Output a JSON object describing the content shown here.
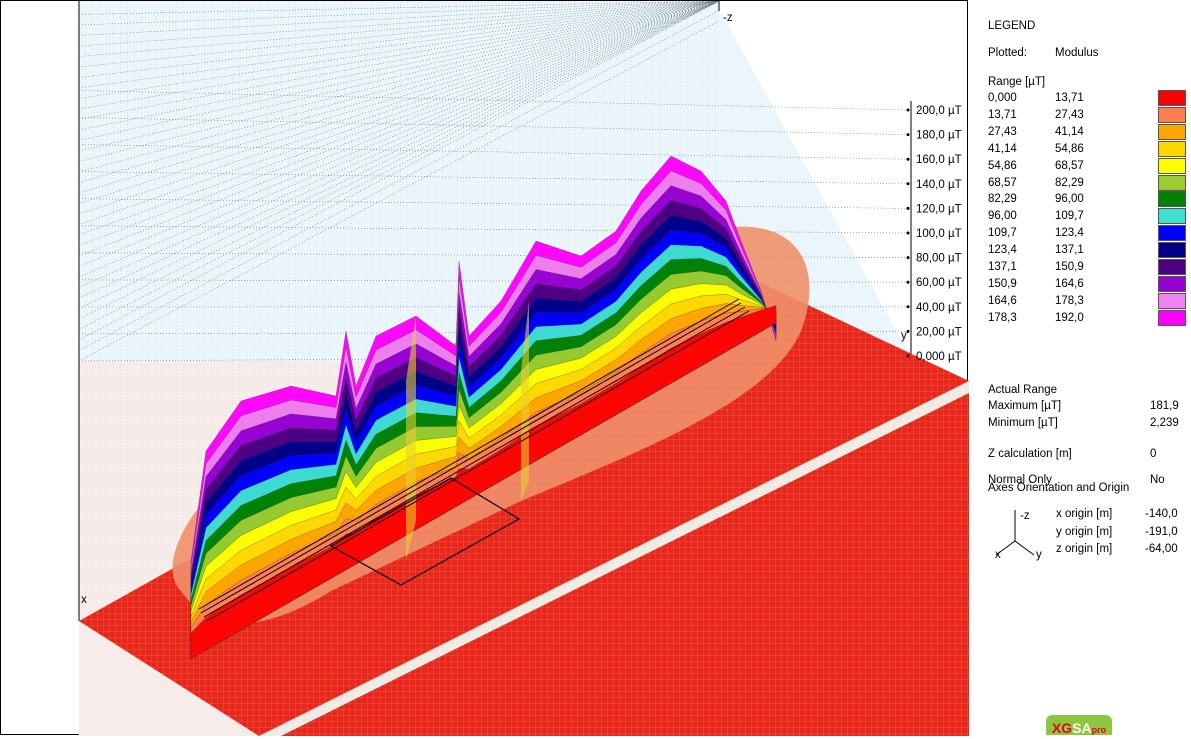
{
  "chart_data": {
    "type": "surface3d",
    "title": "",
    "zlabel": "-z",
    "xaxis_label": "x",
    "yaxis_label": "y",
    "z_ticks": [
      "0,000 µT",
      "20,00 µT",
      "40,00 µT",
      "60,00 µT",
      "80,00 µT",
      "100,0 µT",
      "120,0 µT",
      "140,0 µT",
      "160,0 µT",
      "180,0 µT",
      "200,0 µT"
    ],
    "zlim": [
      0,
      200
    ],
    "grid": true
  },
  "legend": {
    "title": "LEGEND",
    "plotted_label": "Plotted:",
    "plotted_value": "Modulus",
    "range_label": "Range [µT]",
    "ranges": [
      {
        "from": "0,000",
        "to": "13,71",
        "color": "#ff0000"
      },
      {
        "from": "13,71",
        "to": "27,43",
        "color": "#ff7f50"
      },
      {
        "from": "27,43",
        "to": "41,14",
        "color": "#ffa500"
      },
      {
        "from": "41,14",
        "to": "54,86",
        "color": "#ffd700"
      },
      {
        "from": "54,86",
        "to": "68,57",
        "color": "#ffff00"
      },
      {
        "from": "68,57",
        "to": "82,29",
        "color": "#9acd32"
      },
      {
        "from": "82,29",
        "to": "96,00",
        "color": "#008000"
      },
      {
        "from": "96,00",
        "to": "109,7",
        "color": "#40e0d0"
      },
      {
        "from": "109,7",
        "to": "123,4",
        "color": "#0000ff"
      },
      {
        "from": "123,4",
        "to": "137,1",
        "color": "#00008b"
      },
      {
        "from": "137,1",
        "to": "150,9",
        "color": "#4b0082"
      },
      {
        "from": "150,9",
        "to": "164,6",
        "color": "#9400d3"
      },
      {
        "from": "164,6",
        "to": "178,3",
        "color": "#ee82ee"
      },
      {
        "from": "178,3",
        "to": "192,0",
        "color": "#ff00ff"
      }
    ],
    "actual_range_label": "Actual Range",
    "maximum_label": "Maximum [µT]",
    "maximum_value": "181,9",
    "minimum_label": "Minimum [µT]",
    "minimum_value": "2,239",
    "zcalc_label": "Z calculation [m]",
    "zcalc_value": "0",
    "normal_only_label": "Normal Only",
    "normal_only_value": "No",
    "axes_label": "Axes Orientation and Origin",
    "axis_z": "-z",
    "axis_x": "x",
    "axis_y": "y",
    "x_origin_label": "x origin [m]",
    "x_origin_value": "-140,0",
    "y_origin_label": "y origin [m]",
    "y_origin_value": "-191,0",
    "z_origin_label": "z origin [m]",
    "z_origin_value": "-64,00"
  },
  "logo": {
    "text": "XGSApro"
  }
}
